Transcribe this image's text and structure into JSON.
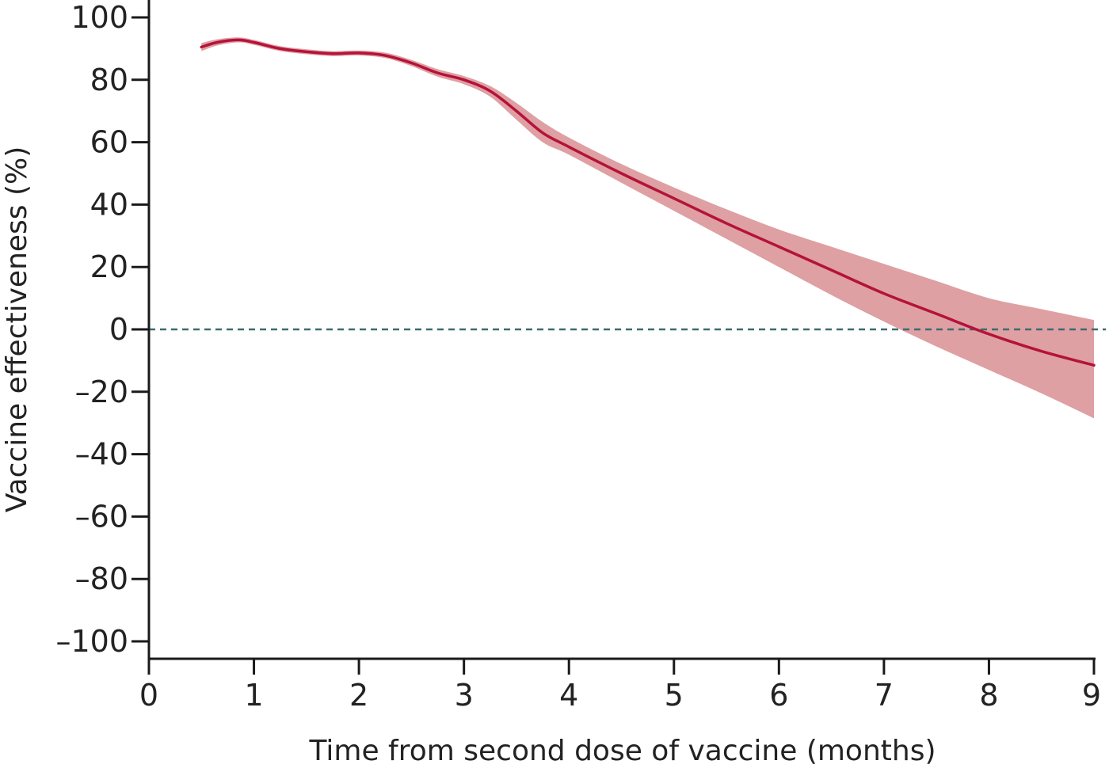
{
  "chart_data": {
    "type": "line",
    "title": "",
    "xlabel": "Time from second dose of vaccine (months)",
    "ylabel": "Vaccine effectiveness (%)",
    "xlim": [
      0,
      9
    ],
    "ylim": [
      -100,
      100
    ],
    "x_ticks": [
      0,
      1,
      2,
      3,
      4,
      5,
      6,
      7,
      8,
      9
    ],
    "x_tick_labels": [
      "0",
      "1",
      "2",
      "3",
      "4",
      "5",
      "6",
      "7",
      "8",
      "9"
    ],
    "y_ticks": [
      100,
      80,
      60,
      40,
      20,
      0,
      -20,
      -40,
      -60,
      -80,
      -100
    ],
    "y_tick_labels": [
      "100",
      "80",
      "60",
      "40",
      "20",
      "0",
      "–20",
      "–40",
      "–60",
      "–80",
      "–100"
    ],
    "grid": false,
    "legend": "none",
    "reference_line": {
      "y": 0,
      "style": "dashed",
      "color": "#3d6b72"
    },
    "series": [
      {
        "color": "#b5123a",
        "band_color": "#dea0a3",
        "points": [
          {
            "x": 0.5,
            "y": 90.5,
            "lower": 89.2,
            "upper": 91.8
          },
          {
            "x": 0.65,
            "y": 92.0,
            "lower": 91.0,
            "upper": 93.0
          },
          {
            "x": 0.85,
            "y": 92.8,
            "lower": 92.0,
            "upper": 93.6
          },
          {
            "x": 1.0,
            "y": 92.0,
            "lower": 91.2,
            "upper": 92.8
          },
          {
            "x": 1.25,
            "y": 90.0,
            "lower": 89.2,
            "upper": 90.8
          },
          {
            "x": 1.5,
            "y": 89.0,
            "lower": 88.2,
            "upper": 89.8
          },
          {
            "x": 1.75,
            "y": 88.4,
            "lower": 87.6,
            "upper": 89.2
          },
          {
            "x": 2.0,
            "y": 88.6,
            "lower": 87.8,
            "upper": 89.4
          },
          {
            "x": 2.25,
            "y": 87.8,
            "lower": 87.0,
            "upper": 88.7
          },
          {
            "x": 2.5,
            "y": 85.4,
            "lower": 84.4,
            "upper": 86.4
          },
          {
            "x": 2.75,
            "y": 82.2,
            "lower": 81.0,
            "upper": 83.4
          },
          {
            "x": 3.0,
            "y": 80.0,
            "lower": 78.6,
            "upper": 81.2
          },
          {
            "x": 3.25,
            "y": 76.4,
            "lower": 74.6,
            "upper": 78.0
          },
          {
            "x": 3.5,
            "y": 70.0,
            "lower": 67.2,
            "upper": 72.6
          },
          {
            "x": 3.75,
            "y": 63.0,
            "lower": 60.0,
            "upper": 66.5
          },
          {
            "x": 4.0,
            "y": 58.5,
            "lower": 56.0,
            "upper": 61.5
          },
          {
            "x": 4.5,
            "y": 50.0,
            "lower": 47.0,
            "upper": 53.0
          },
          {
            "x": 5.0,
            "y": 42.0,
            "lower": 38.0,
            "upper": 45.5
          },
          {
            "x": 5.5,
            "y": 34.0,
            "lower": 29.0,
            "upper": 38.5
          },
          {
            "x": 6.0,
            "y": 26.5,
            "lower": 20.0,
            "upper": 32.0
          },
          {
            "x": 6.5,
            "y": 19.0,
            "lower": 11.0,
            "upper": 26.5
          },
          {
            "x": 7.0,
            "y": 11.5,
            "lower": 2.5,
            "upper": 21.0
          },
          {
            "x": 7.5,
            "y": 5.0,
            "lower": -5.5,
            "upper": 15.5
          },
          {
            "x": 8.0,
            "y": -1.5,
            "lower": -13.0,
            "upper": 10.0
          },
          {
            "x": 8.5,
            "y": -7.0,
            "lower": -20.5,
            "upper": 6.5
          },
          {
            "x": 9.0,
            "y": -11.5,
            "lower": -28.5,
            "upper": 3.0
          }
        ]
      }
    ]
  }
}
